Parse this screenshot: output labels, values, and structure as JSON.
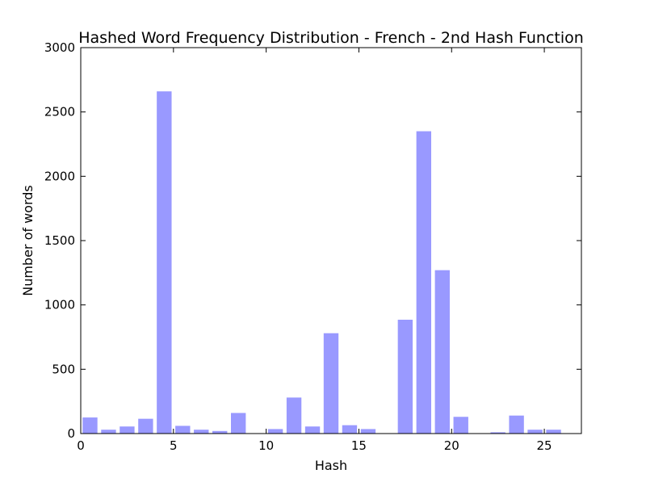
{
  "chart_data": {
    "type": "bar",
    "title": "Hashed Word Frequency Distribution - French - 2nd Hash Function",
    "xlabel": "Hash",
    "ylabel": "Number of words",
    "xlim": [
      0,
      27
    ],
    "ylim": [
      0,
      3000
    ],
    "xticks": [
      0,
      5,
      10,
      15,
      20,
      25
    ],
    "yticks": [
      0,
      500,
      1000,
      1500,
      2000,
      2500,
      3000
    ],
    "bar_width": 0.8,
    "bar_color": "#9999ff",
    "grid": false,
    "x": [
      0,
      1,
      2,
      3,
      4,
      5,
      6,
      7,
      8,
      9,
      10,
      11,
      12,
      13,
      14,
      15,
      16,
      17,
      18,
      19,
      20,
      21,
      22,
      23,
      24,
      25
    ],
    "values": [
      125,
      30,
      55,
      115,
      2660,
      60,
      30,
      20,
      160,
      0,
      35,
      280,
      55,
      780,
      65,
      35,
      0,
      885,
      2350,
      1270,
      130,
      0,
      10,
      140,
      30,
      30
    ]
  }
}
